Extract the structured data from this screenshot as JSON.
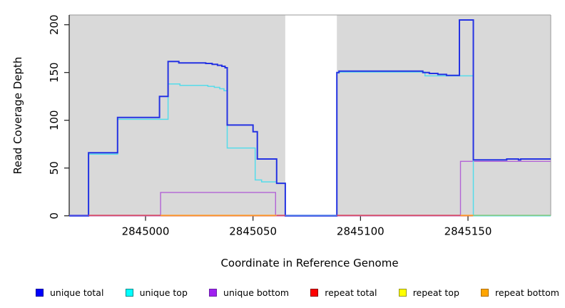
{
  "chart_data": {
    "type": "line",
    "subtype": "step-coverage-plot",
    "title": "",
    "xlabel": "Coordinate in Reference Genome",
    "ylabel": "Read Coverage Depth",
    "xlim": [
      2844964.5,
      2845188.5
    ],
    "ylim": [
      0,
      210
    ],
    "x_ticks": [
      2845000,
      2845050,
      2845100,
      2845150
    ],
    "y_ticks": [
      0,
      50,
      100,
      150,
      200
    ],
    "grid": "off",
    "legend_position": "bottom",
    "plot_bg_color": "#d9d9d9",
    "box_border_color": "#999999",
    "axis_color": "#1a1a1a",
    "gap_region": {
      "x0": 2845065,
      "x1": 2845089,
      "color": "#ffffff",
      "note": "no-data white band"
    },
    "series": [
      {
        "name": "repeat top",
        "color": "#f2e72c",
        "width": 1.2,
        "points": [
          [
            2844964.5,
            0
          ],
          [
            2845188.5,
            0
          ]
        ]
      },
      {
        "name": "repeat bottom",
        "color": "#ff9c2a",
        "width": 1.2,
        "points": [
          [
            2844964.5,
            0
          ],
          [
            2845188.5,
            0
          ]
        ]
      },
      {
        "name": "repeat total",
        "color": "#d94b62",
        "width": 1.2,
        "points": [
          [
            2844964.5,
            0
          ],
          [
            2845188.5,
            0
          ]
        ]
      },
      {
        "name": "unique bottom",
        "color": "#b263d6",
        "width": 1.4,
        "points": [
          [
            2844964.5,
            0
          ],
          [
            2845007,
            24.5
          ],
          [
            2845060.5,
            0
          ],
          [
            2845146.5,
            57
          ],
          [
            2845188.5,
            57
          ]
        ]
      },
      {
        "name": "unique top",
        "color": "#55dcea",
        "width": 1.5,
        "points": [
          [
            2844964.5,
            0
          ],
          [
            2844973.5,
            64.5
          ],
          [
            2844987,
            101
          ],
          [
            2845010.5,
            138
          ],
          [
            2845016,
            136.5
          ],
          [
            2845029,
            135.5
          ],
          [
            2845032,
            134.5
          ],
          [
            2845034.5,
            133
          ],
          [
            2845036.5,
            131
          ],
          [
            2845038,
            71
          ],
          [
            2845051,
            37.5
          ],
          [
            2845054,
            35.5
          ],
          [
            2845061,
            34
          ],
          [
            2845065,
            0
          ],
          [
            2845089,
            149.5
          ],
          [
            2845090,
            150.5
          ],
          [
            2845130,
            146.5
          ],
          [
            2845152.5,
            0
          ],
          [
            2845188.5,
            0
          ]
        ]
      },
      {
        "name": "unique total",
        "color": "#2533e2",
        "width": 2,
        "points": [
          [
            2844964.5,
            0
          ],
          [
            2844973.5,
            66
          ],
          [
            2844987,
            103
          ],
          [
            2845006.5,
            125
          ],
          [
            2845010.5,
            161.5
          ],
          [
            2845015.5,
            160
          ],
          [
            2845028,
            159.5
          ],
          [
            2845031,
            158.5
          ],
          [
            2845033.5,
            157.5
          ],
          [
            2845035.5,
            156.5
          ],
          [
            2845037,
            155
          ],
          [
            2845038,
            95
          ],
          [
            2845050,
            88
          ],
          [
            2845052,
            59.5
          ],
          [
            2845061,
            34
          ],
          [
            2845065,
            0
          ],
          [
            2845089,
            150
          ],
          [
            2845090,
            151.5
          ],
          [
            2845129,
            150
          ],
          [
            2845132,
            149
          ],
          [
            2845136,
            148
          ],
          [
            2845140,
            147
          ],
          [
            2845146,
            205
          ],
          [
            2845152.5,
            58.5
          ],
          [
            2845168,
            59.5
          ],
          [
            2845173.5,
            58.5
          ],
          [
            2845174.5,
            59.5
          ],
          [
            2845188.5,
            59.5
          ]
        ]
      }
    ],
    "baseline_segments": [
      {
        "x0": 2844964.5,
        "x1": 2844973.5,
        "color": "#4d4de0"
      },
      {
        "x0": 2844973.5,
        "x1": 2845007,
        "color": "#d94b62"
      },
      {
        "x0": 2845007,
        "x1": 2845061,
        "color": "#ff9c2a"
      },
      {
        "x0": 2845061,
        "x1": 2845065,
        "color": "#d94b62"
      },
      {
        "x0": 2845065,
        "x1": 2845089,
        "color": "#4b78e6"
      },
      {
        "x0": 2845089,
        "x1": 2845146.5,
        "color": "#d94b62"
      },
      {
        "x0": 2845146.5,
        "x1": 2845152.5,
        "color": "#ff9c2a"
      },
      {
        "x0": 2845152.5,
        "x1": 2845188.5,
        "color": "#84cb84"
      }
    ]
  },
  "legend": {
    "items": [
      {
        "label": "unique total",
        "fill": "#0000ff",
        "border": "#000099"
      },
      {
        "label": "unique top",
        "fill": "#00ffff",
        "border": "#008b8b"
      },
      {
        "label": "unique bottom",
        "fill": "#a020f0",
        "border": "#6a1fa8"
      },
      {
        "label": "repeat total",
        "fill": "#ff0000",
        "border": "#8b0000"
      },
      {
        "label": "repeat top",
        "fill": "#ffff00",
        "border": "#99991a"
      },
      {
        "label": "repeat bottom",
        "fill": "#ffa500",
        "border": "#b06f00"
      }
    ]
  }
}
